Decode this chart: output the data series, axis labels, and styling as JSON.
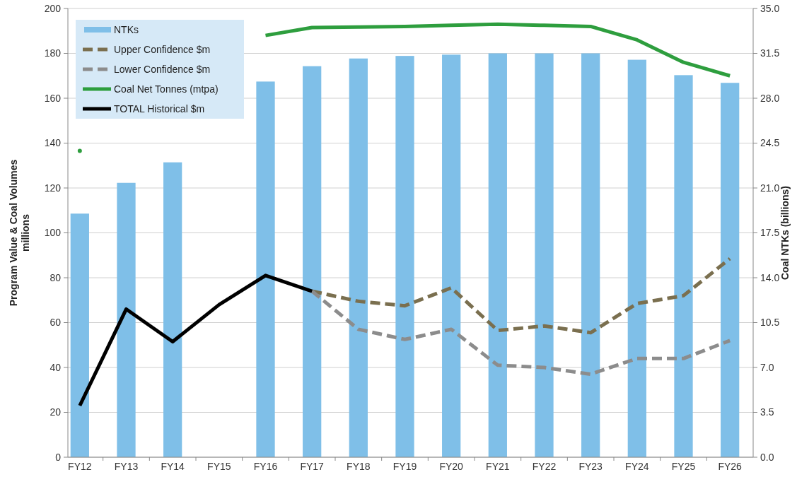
{
  "chart_data": {
    "type": "bar",
    "categories": [
      "FY12",
      "FY13",
      "FY14",
      "FY15",
      "FY16",
      "FY17",
      "FY18",
      "FY19",
      "FY20",
      "FY21",
      "FY22",
      "FY23",
      "FY24",
      "FY25",
      "FY26"
    ],
    "ylabel": "Program Value & Coal Volumes\nmillions",
    "y2label": "Coal NTKs (billions)",
    "ylim": [
      0,
      200
    ],
    "yticks": [
      0,
      20,
      40,
      60,
      80,
      100,
      120,
      140,
      160,
      180,
      200
    ],
    "y2lim": [
      0,
      35
    ],
    "y2ticks": [
      {
        "value": 0,
        "label": "0.0"
      },
      {
        "value": 3.5,
        "label": "3.5"
      },
      {
        "value": 7,
        "label": "7.0"
      },
      {
        "value": 10.5,
        "label": "10.5"
      },
      {
        "value": 14,
        "label": "14.0"
      },
      {
        "value": 17.5,
        "label": "17.5"
      },
      {
        "value": 21,
        "label": "21.0"
      },
      {
        "value": 24.5,
        "label": "24.5"
      },
      {
        "value": 28,
        "label": "28.0"
      },
      {
        "value": 31.5,
        "label": "31.5"
      },
      {
        "value": 35,
        "label": "35.0"
      }
    ],
    "grid": "y",
    "legend": "top left",
    "series": [
      {
        "name": "NTKs",
        "axis": "y2",
        "color": "#7fbfe8",
        "values": [
          19.0,
          21.4,
          23.0,
          null,
          29.3,
          30.5,
          31.1,
          31.3,
          31.4,
          31.5,
          31.5,
          31.5,
          31.0,
          29.8,
          29.2
        ]
      },
      {
        "name": "Upper Confidence $m",
        "type": "line",
        "line_style": "dashed",
        "color": "#7a6f4f",
        "values": [
          null,
          null,
          null,
          null,
          null,
          74,
          69.5,
          67.5,
          75.5,
          56.5,
          58.5,
          55.5,
          68.5,
          72,
          88.5
        ]
      },
      {
        "name": "Lower Confidence $m",
        "type": "line",
        "line_style": "dashed",
        "color": "#8c8c8c",
        "values": [
          null,
          null,
          null,
          null,
          null,
          74,
          57,
          52.5,
          57,
          41,
          40,
          37,
          44,
          44,
          52
        ]
      },
      {
        "name": "Coal Net Tonnes (mtpa)",
        "type": "line",
        "line_style": "solid",
        "color": "#2e9e3e",
        "values": [
          136.5,
          null,
          null,
          null,
          188,
          191.5,
          191.7,
          192,
          192.5,
          193,
          192.5,
          192,
          186,
          176,
          170
        ]
      },
      {
        "name": "TOTAL Historical $m",
        "type": "line",
        "line_style": "solid",
        "color": "#000000",
        "values": [
          23,
          66,
          51.5,
          68,
          81,
          74,
          null,
          null,
          null,
          null,
          null,
          null,
          null,
          null,
          null
        ]
      }
    ]
  }
}
